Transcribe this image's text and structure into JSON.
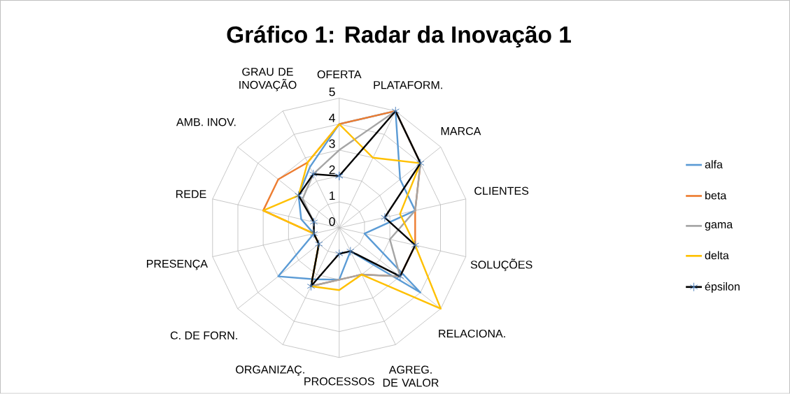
{
  "chart_data": {
    "type": "radar",
    "title": "Gráfico 1: Radar da Inovação 1",
    "categories": [
      "OFERTA",
      "PLATAFORM.",
      "MARCA",
      "CLIENTES",
      "SOLUÇÕES",
      "RELACIONA.",
      "AGREG. DE VALOR",
      "PROCESSOS",
      "ORGANIZAÇ.",
      "C. DE FORN.",
      "PRESENÇA",
      "REDE",
      "AMB. INOV.",
      "GRAU DE INOVAÇÃO"
    ],
    "series": [
      {
        "name": "alfa",
        "color": "#5b9bd5",
        "values": [
          4,
          5,
          3,
          3,
          1,
          4,
          1,
          2,
          2.2,
          3,
          1,
          1.5,
          2,
          2.6
        ]
      },
      {
        "name": "beta",
        "color": "#ed7d31",
        "values": [
          4,
          5,
          4,
          3,
          3,
          3,
          2,
          2,
          2.5,
          1,
          1,
          3,
          3,
          2.8
        ]
      },
      {
        "name": "gama",
        "color": "#a5a5a5",
        "values": [
          3,
          5,
          4,
          3,
          2,
          3,
          2,
          2,
          2.5,
          1,
          1,
          1,
          1.8,
          2.3
        ]
      },
      {
        "name": "delta",
        "color": "#ffc000",
        "values": [
          4,
          3,
          4,
          2.4,
          3,
          5,
          2,
          2.4,
          2.5,
          1,
          1,
          3,
          2,
          2.8
        ]
      },
      {
        "name": "épsilon",
        "color": "#000000",
        "marker": "star",
        "values": [
          2,
          5,
          4,
          1.8,
          3,
          3,
          1,
          1,
          2.5,
          1,
          1,
          1,
          2,
          2.3
        ]
      }
    ],
    "ylim": [
      0,
      5
    ],
    "yticks": [
      0,
      1,
      2,
      3,
      4,
      5
    ],
    "grid": true,
    "legend": "right"
  }
}
